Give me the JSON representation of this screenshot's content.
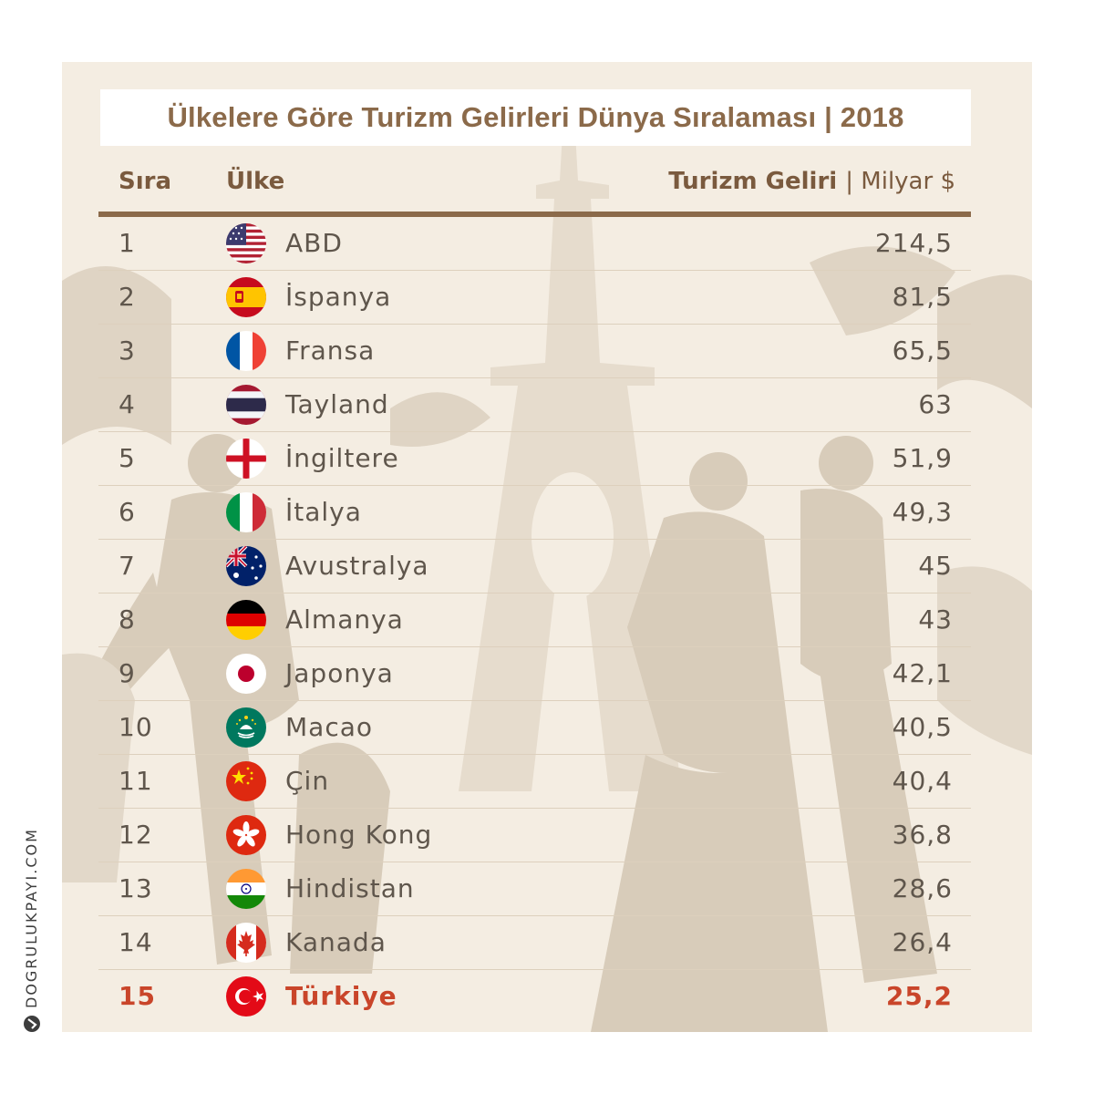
{
  "title": "Ülkelere Göre Turizm Gelirleri Dünya Sıralaması | 2018",
  "headers": {
    "rank": "Sıra",
    "country": "Ülke",
    "value": "Turizm Geliri",
    "unit": "| Milyar $"
  },
  "brand": "DOGRULUKPAYI.COM",
  "colors": {
    "accent": "#8b6a4a",
    "highlight": "#c9452a",
    "text": "#5f564c",
    "background": "#f4ede2"
  },
  "chart_data": {
    "type": "table",
    "title": "Ülkelere Göre Turizm Gelirleri Dünya Sıralaması | 2018",
    "columns": [
      "Sıra",
      "Ülke",
      "Turizm Geliri | Milyar $"
    ],
    "rows": [
      {
        "rank": "1",
        "country": "ABD",
        "flag": "usa-flag-icon",
        "value": "214,5"
      },
      {
        "rank": "2",
        "country": "İspanya",
        "flag": "spain-flag-icon",
        "value": "81,5"
      },
      {
        "rank": "3",
        "country": "Fransa",
        "flag": "france-flag-icon",
        "value": "65,5"
      },
      {
        "rank": "4",
        "country": "Tayland",
        "flag": "thailand-flag-icon",
        "value": "63"
      },
      {
        "rank": "5",
        "country": "İngiltere",
        "flag": "england-flag-icon",
        "value": "51,9"
      },
      {
        "rank": "6",
        "country": "İtalya",
        "flag": "italy-flag-icon",
        "value": "49,3"
      },
      {
        "rank": "7",
        "country": "Avustralya",
        "flag": "australia-flag-icon",
        "value": "45"
      },
      {
        "rank": "8",
        "country": "Almanya",
        "flag": "germany-flag-icon",
        "value": "43"
      },
      {
        "rank": "9",
        "country": "Japonya",
        "flag": "japan-flag-icon",
        "value": "42,1"
      },
      {
        "rank": "10",
        "country": "Macao",
        "flag": "macao-flag-icon",
        "value": "40,5"
      },
      {
        "rank": "11",
        "country": "Çin",
        "flag": "china-flag-icon",
        "value": "40,4"
      },
      {
        "rank": "12",
        "country": "Hong Kong",
        "flag": "hongkong-flag-icon",
        "value": "36,8"
      },
      {
        "rank": "13",
        "country": "Hindistan",
        "flag": "india-flag-icon",
        "value": "28,6"
      },
      {
        "rank": "14",
        "country": "Kanada",
        "flag": "canada-flag-icon",
        "value": "26,4"
      },
      {
        "rank": "15",
        "country": "Türkiye",
        "flag": "turkey-flag-icon",
        "value": "25,2",
        "highlight": true
      }
    ]
  }
}
